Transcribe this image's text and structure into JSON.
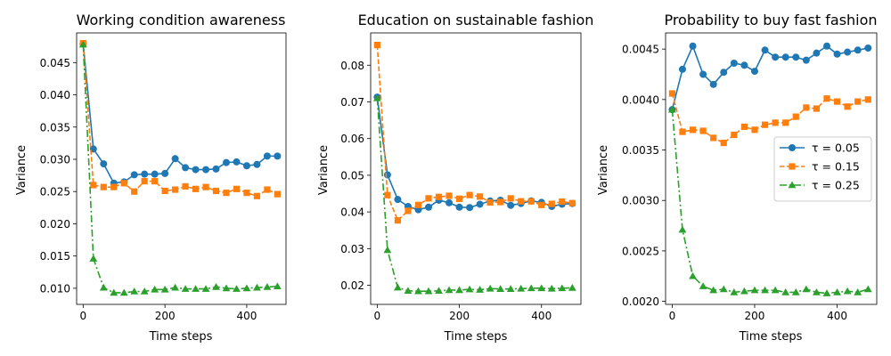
{
  "chart_data": [
    {
      "type": "line",
      "title": "Working condition awareness",
      "xlabel": "Time steps",
      "ylabel": "Variance",
      "xlim": [
        -16,
        496
      ],
      "ylim": [
        0.0075,
        0.0496
      ],
      "xticks": [
        0,
        200,
        400
      ],
      "xtick_labels": [
        "0",
        "200",
        "400"
      ],
      "yticks": [
        0.01,
        0.015,
        0.02,
        0.025,
        0.03,
        0.035,
        0.04,
        0.045
      ],
      "ytick_labels": [
        "0.010",
        "0.015",
        "0.020",
        "0.025",
        "0.030",
        "0.035",
        "0.040",
        "0.045"
      ],
      "x": [
        0,
        25,
        50,
        75,
        100,
        125,
        150,
        175,
        200,
        225,
        250,
        275,
        300,
        325,
        350,
        375,
        400,
        425,
        450,
        475
      ],
      "series": [
        {
          "name": "τ = 0.05",
          "color": "#1f77b4",
          "marker": "circle",
          "dash": "solid",
          "values": [
            0.0479,
            0.0316,
            0.0293,
            0.0263,
            0.0265,
            0.0276,
            0.0277,
            0.0277,
            0.0278,
            0.0301,
            0.0287,
            0.0284,
            0.0284,
            0.0285,
            0.0295,
            0.0296,
            0.029,
            0.0292,
            0.0305,
            0.0305
          ]
        },
        {
          "name": "τ = 0.15",
          "color": "#ff7f0e",
          "marker": "square",
          "dash": "dashed",
          "values": [
            0.048,
            0.026,
            0.0257,
            0.0257,
            0.0263,
            0.025,
            0.0266,
            0.0266,
            0.0251,
            0.0253,
            0.0258,
            0.0254,
            0.0257,
            0.0251,
            0.0248,
            0.0254,
            0.0248,
            0.0243,
            0.0253,
            0.0246
          ]
        },
        {
          "name": "τ = 0.25",
          "color": "#2ca02c",
          "marker": "triangle",
          "dash": "dashdot",
          "values": [
            0.0478,
            0.0146,
            0.0101,
            0.0093,
            0.0093,
            0.0095,
            0.0095,
            0.0098,
            0.0098,
            0.0101,
            0.0099,
            0.0099,
            0.0099,
            0.0102,
            0.01,
            0.0099,
            0.01,
            0.0101,
            0.0102,
            0.0103
          ]
        }
      ]
    },
    {
      "type": "line",
      "title": "Education on sustainable fashion",
      "xlabel": "Time steps",
      "ylabel": "Variance",
      "xlim": [
        -16,
        496
      ],
      "ylim": [
        0.0148,
        0.0888
      ],
      "xticks": [
        0,
        200,
        400
      ],
      "xtick_labels": [
        "0",
        "200",
        "400"
      ],
      "yticks": [
        0.02,
        0.03,
        0.04,
        0.05,
        0.06,
        0.07,
        0.08
      ],
      "ytick_labels": [
        "0.02",
        "0.03",
        "0.04",
        "0.05",
        "0.06",
        "0.07",
        "0.08"
      ],
      "x": [
        0,
        25,
        50,
        75,
        100,
        125,
        150,
        175,
        200,
        225,
        250,
        275,
        300,
        325,
        350,
        375,
        400,
        425,
        450,
        475
      ],
      "series": [
        {
          "name": "τ = 0.05",
          "color": "#1f77b4",
          "marker": "circle",
          "dash": "solid",
          "values": [
            0.0713,
            0.0501,
            0.0434,
            0.0415,
            0.0406,
            0.0413,
            0.0432,
            0.0425,
            0.0413,
            0.0412,
            0.0421,
            0.043,
            0.0432,
            0.0418,
            0.0423,
            0.043,
            0.0426,
            0.0415,
            0.0421,
            0.0423
          ]
        },
        {
          "name": "τ = 0.15",
          "color": "#ff7f0e",
          "marker": "square",
          "dash": "dashed",
          "values": [
            0.0855,
            0.0446,
            0.0377,
            0.0403,
            0.0419,
            0.0437,
            0.0441,
            0.0444,
            0.0436,
            0.0446,
            0.0442,
            0.0426,
            0.0427,
            0.0437,
            0.0429,
            0.0429,
            0.0419,
            0.0422,
            0.0428,
            0.0424
          ]
        },
        {
          "name": "τ = 0.25",
          "color": "#2ca02c",
          "marker": "triangle",
          "dash": "dashdot",
          "values": [
            0.071,
            0.0296,
            0.0194,
            0.0185,
            0.0184,
            0.0184,
            0.0185,
            0.0187,
            0.0187,
            0.0189,
            0.0188,
            0.0191,
            0.019,
            0.019,
            0.0191,
            0.0192,
            0.0192,
            0.0191,
            0.0192,
            0.0193
          ]
        }
      ]
    },
    {
      "type": "line",
      "title": "Probability to buy fast fashion",
      "xlabel": "Time steps",
      "ylabel": "Variance",
      "xlim": [
        -16,
        496
      ],
      "ylim": [
        0.00197,
        0.00466
      ],
      "xticks": [
        0,
        200,
        400
      ],
      "xtick_labels": [
        "0",
        "200",
        "400"
      ],
      "yticks": [
        0.002,
        0.0025,
        0.003,
        0.0035,
        0.004,
        0.0045
      ],
      "ytick_labels": [
        "0.0020",
        "0.0025",
        "0.0030",
        "0.0035",
        "0.0040",
        "0.0045"
      ],
      "x": [
        0,
        25,
        50,
        75,
        100,
        125,
        150,
        175,
        200,
        225,
        250,
        275,
        300,
        325,
        350,
        375,
        400,
        425,
        450,
        475
      ],
      "series": [
        {
          "name": "τ = 0.05",
          "color": "#1f77b4",
          "marker": "circle",
          "dash": "solid",
          "values": [
            0.0039,
            0.0043,
            0.00453,
            0.00425,
            0.00415,
            0.00427,
            0.00436,
            0.00434,
            0.00428,
            0.00449,
            0.00442,
            0.00442,
            0.00442,
            0.00439,
            0.00446,
            0.00453,
            0.00445,
            0.00447,
            0.00449,
            0.00451
          ]
        },
        {
          "name": "τ = 0.15",
          "color": "#ff7f0e",
          "marker": "square",
          "dash": "dashed",
          "values": [
            0.00406,
            0.00368,
            0.0037,
            0.00369,
            0.00362,
            0.00357,
            0.00365,
            0.00373,
            0.0037,
            0.00375,
            0.00377,
            0.00377,
            0.00383,
            0.00392,
            0.00391,
            0.00401,
            0.00398,
            0.00393,
            0.00398,
            0.004
          ]
        },
        {
          "name": "τ = 0.25",
          "color": "#2ca02c",
          "marker": "triangle",
          "dash": "dashdot",
          "values": [
            0.0039,
            0.00271,
            0.00225,
            0.00215,
            0.00211,
            0.00212,
            0.00209,
            0.0021,
            0.00211,
            0.00211,
            0.00211,
            0.00209,
            0.00209,
            0.00212,
            0.00209,
            0.00208,
            0.00209,
            0.0021,
            0.00209,
            0.00212
          ]
        }
      ],
      "legend": {
        "placement": "center-right",
        "entries": [
          "τ = 0.05",
          "τ = 0.15",
          "τ = 0.25"
        ]
      }
    }
  ]
}
